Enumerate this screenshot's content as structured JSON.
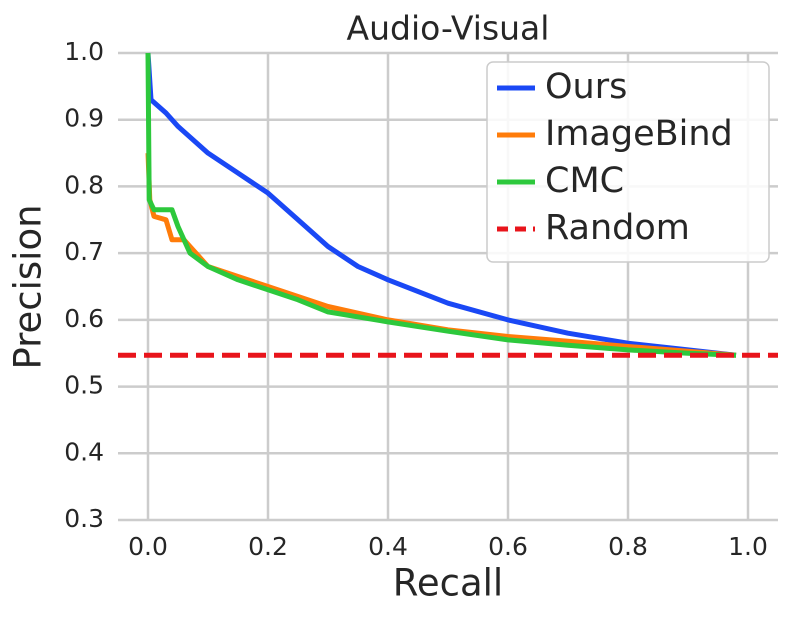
{
  "chart_data": {
    "type": "line",
    "title": "Audio-Visual",
    "x_label": "Recall",
    "y_label": "Precision",
    "xlim": [
      -0.05,
      1.05
    ],
    "ylim": [
      0.3,
      1.0
    ],
    "xticks": [
      {
        "value": 0,
        "label": "0.0"
      },
      0.2,
      0.4,
      0.6,
      0.8,
      {
        "value": 1,
        "label": "1.0"
      }
    ],
    "yticks": [
      0.3,
      0.4,
      0.5,
      0.6,
      0.7,
      0.8,
      0.9,
      {
        "value": 1,
        "label": "1.0"
      }
    ],
    "grid": true,
    "legend": "upper right",
    "series": [
      {
        "name": "Ours",
        "color": "#1a48f5",
        "linestyle": "solid",
        "x": [
          0,
          0.005,
          0.03,
          0.05,
          0.1,
          0.15,
          0.2,
          0.25,
          0.3,
          0.35,
          0.4,
          0.5,
          0.6,
          0.7,
          0.8,
          0.9,
          0.98
        ],
        "values": [
          1.0,
          0.93,
          0.91,
          0.89,
          0.85,
          0.82,
          0.79,
          0.75,
          0.71,
          0.68,
          0.66,
          0.625,
          0.6,
          0.58,
          0.565,
          0.555,
          0.547
        ]
      },
      {
        "name": "ImageBind",
        "color": "#ff7c0a",
        "linestyle": "solid",
        "x": [
          0,
          0.003,
          0.01,
          0.03,
          0.04,
          0.06,
          0.07,
          0.1,
          0.15,
          0.2,
          0.25,
          0.3,
          0.4,
          0.5,
          0.6,
          0.7,
          0.8,
          0.9,
          0.98
        ],
        "values": [
          0.85,
          0.78,
          0.755,
          0.75,
          0.72,
          0.72,
          0.71,
          0.68,
          0.665,
          0.65,
          0.635,
          0.62,
          0.6,
          0.585,
          0.575,
          0.568,
          0.56,
          0.553,
          0.547
        ]
      },
      {
        "name": "CMC",
        "color": "#2dc83c",
        "linestyle": "solid",
        "x": [
          0,
          0.002,
          0.01,
          0.04,
          0.05,
          0.07,
          0.1,
          0.15,
          0.2,
          0.25,
          0.3,
          0.4,
          0.5,
          0.6,
          0.7,
          0.8,
          0.9,
          0.98
        ],
        "values": [
          1.0,
          0.78,
          0.765,
          0.765,
          0.74,
          0.7,
          0.68,
          0.66,
          0.645,
          0.63,
          0.612,
          0.597,
          0.583,
          0.57,
          0.562,
          0.555,
          0.55,
          0.547
        ]
      },
      {
        "name": "Random",
        "color": "#e8141b",
        "linestyle": "dashed",
        "x": [
          -0.05,
          1.05
        ],
        "values": [
          0.547,
          0.547
        ]
      }
    ]
  }
}
